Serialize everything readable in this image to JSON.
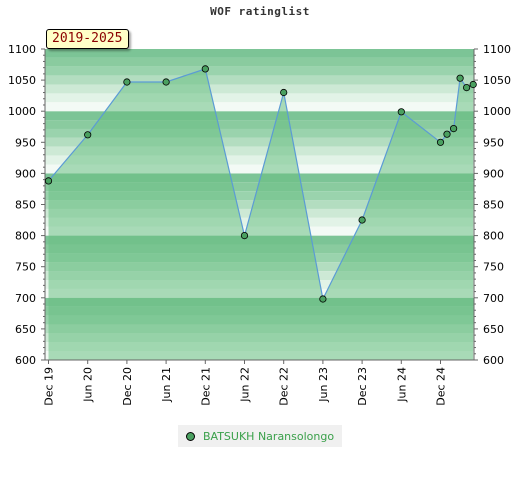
{
  "header": {
    "title": "WOF ratinglist"
  },
  "badge": {
    "text": "2019-2025"
  },
  "legend": {
    "name": "BATSUKH Naransolongo"
  },
  "colors": {
    "line": "#5b9bd5",
    "fill": "#6abf84",
    "point_fill": "#4aa060",
    "point_stroke": "#000000"
  },
  "chart_data": {
    "type": "area",
    "title": "WOF ratinglist",
    "xlabel": "",
    "ylabel": "",
    "ylim": [
      600,
      1100
    ],
    "y_ticks": [
      600,
      650,
      700,
      750,
      800,
      850,
      900,
      950,
      1000,
      1050,
      1100
    ],
    "x_ticks": [
      "Dec 19",
      "Jun 20",
      "Dec 20",
      "Jun 21",
      "Dec 21",
      "Jun 22",
      "Dec 22",
      "Jun 23",
      "Dec 23",
      "Jun 24",
      "Dec 24"
    ],
    "grid": true,
    "legend_position": "bottom",
    "series": [
      {
        "name": "BATSUKH Naransolongo",
        "x": [
          "Dec 19",
          "Jun 20",
          "Dec 20",
          "Jun 21",
          "Dec 21",
          "Jun 22",
          "Dec 22",
          "Jun 23",
          "Dec 23",
          "Jun 24",
          "Dec 24",
          "Jan 25",
          "Feb 25",
          "Mar 25",
          "Apr 25",
          "May 25"
        ],
        "values": [
          888,
          962,
          1047,
          1047,
          1068,
          800,
          1030,
          698,
          825,
          999,
          950,
          963,
          972,
          1053,
          1038,
          1043
        ]
      }
    ]
  }
}
